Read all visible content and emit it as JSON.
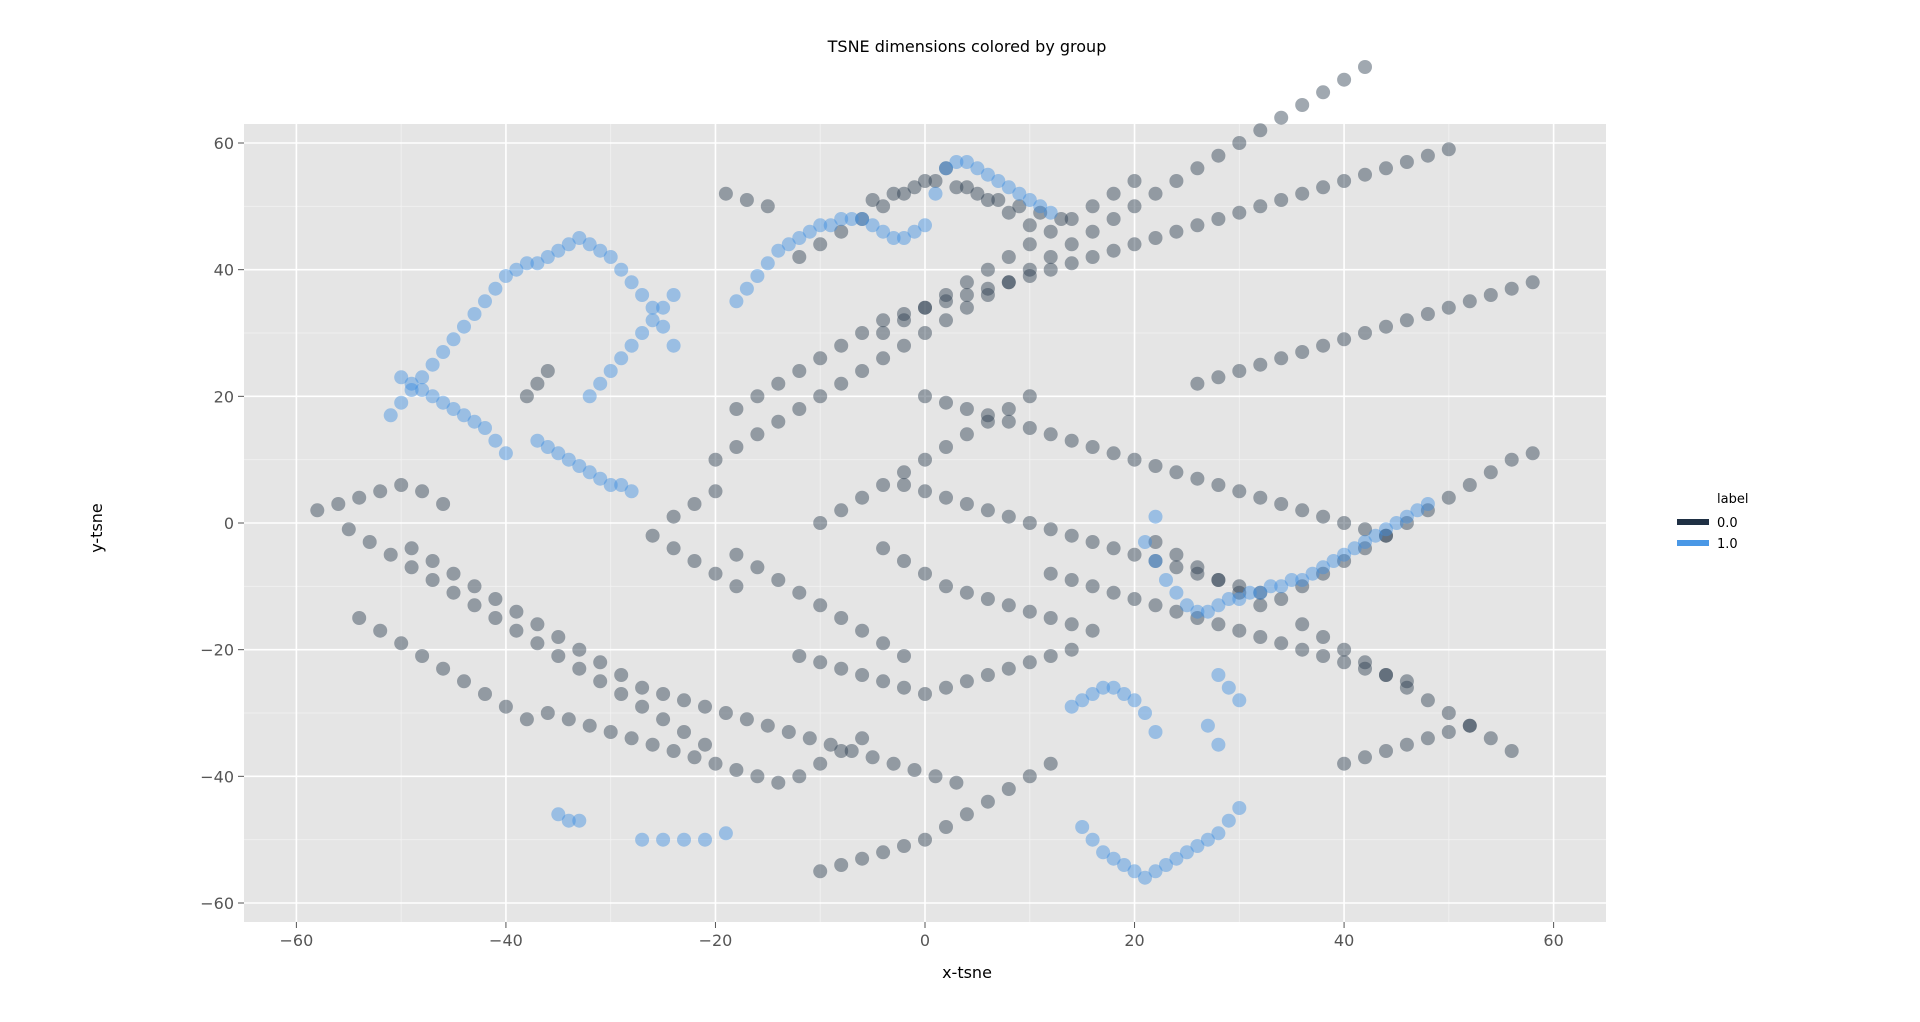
{
  "chart_data": {
    "type": "scatter",
    "title": "TSNE dimensions colored by group",
    "xlabel": "x-tsne",
    "ylabel": "y-tsne",
    "xlim": [
      -65,
      65
    ],
    "ylim": [
      -63,
      63
    ],
    "xticks": [
      -60,
      -40,
      -20,
      0,
      20,
      40,
      60
    ],
    "yticks": [
      -60,
      -40,
      -20,
      0,
      20,
      40,
      60
    ],
    "xtick_labels": [
      "−60",
      "−40",
      "−20",
      "0",
      "20",
      "40",
      "60"
    ],
    "ytick_labels": [
      "−60",
      "−40",
      "−20",
      "0",
      "20",
      "40",
      "60"
    ],
    "grid": true,
    "legend": {
      "title": "label",
      "placement": "right",
      "entries": [
        {
          "label": "0.0",
          "color": "#1f3044"
        },
        {
          "label": "1.0",
          "color": "#4a98e6"
        }
      ]
    },
    "colors": {
      "panel": "#e5e5e5",
      "grid": "#ffffff",
      "series0": "#2c3e50",
      "series1": "#3d8fe0"
    },
    "series": [
      {
        "name": "0.0",
        "x": [
          -58,
          -56,
          -54,
          -52,
          -50,
          -48,
          -46,
          -55,
          -53,
          -51,
          -49,
          -47,
          -45,
          -43,
          -41,
          -39,
          -37,
          -35,
          -33,
          -31,
          -29,
          -27,
          -25,
          -23,
          -21,
          -36,
          -34,
          -32,
          -30,
          -28,
          -26,
          -24,
          -22,
          -20,
          -18,
          -16,
          -14,
          -12,
          -10,
          -8,
          -6,
          -54,
          -52,
          -50,
          -48,
          -46,
          -44,
          -42,
          -40,
          -38,
          -49,
          -47,
          -45,
          -43,
          -41,
          -39,
          -37,
          -35,
          -33,
          -31,
          -29,
          -27,
          -25,
          -23,
          -21,
          -19,
          -17,
          -15,
          -13,
          -11,
          -9,
          -7,
          -5,
          -3,
          -1,
          1,
          3,
          -10,
          -8,
          -6,
          -4,
          -2,
          0,
          2,
          4,
          6,
          8,
          10,
          12,
          -18,
          -16,
          -14,
          -12,
          -10,
          -8,
          -6,
          -4,
          -2,
          -12,
          -10,
          -8,
          -6,
          -4,
          -2,
          0,
          2,
          4,
          6,
          8,
          10,
          12,
          14,
          -4,
          -2,
          0,
          2,
          4,
          6,
          8,
          10,
          12,
          14,
          16,
          -2,
          0,
          2,
          4,
          6,
          8,
          10,
          12,
          14,
          16,
          18,
          20,
          22,
          24,
          26,
          28,
          30,
          32,
          0,
          2,
          4,
          6,
          8,
          10,
          12,
          14,
          16,
          18,
          20,
          22,
          24,
          26,
          28,
          30,
          32,
          34,
          36,
          38,
          40,
          42,
          44,
          26,
          28,
          30,
          32,
          34,
          36,
          38,
          40,
          42,
          44,
          46,
          48,
          50,
          52,
          54,
          56,
          58,
          22,
          24,
          26,
          28,
          30,
          32,
          34,
          36,
          38,
          40,
          42,
          44,
          46,
          48,
          50,
          52,
          54,
          56,
          58,
          36,
          38,
          40,
          42,
          44,
          46,
          48,
          50,
          52,
          54,
          56,
          40,
          42,
          44,
          46,
          48,
          50,
          52,
          -10,
          -8,
          -6,
          -4,
          -2,
          0,
          2,
          4,
          6,
          8,
          10,
          -4,
          -2,
          0,
          2,
          4,
          6,
          8,
          10,
          12,
          14,
          16,
          18,
          20,
          -12,
          -10,
          -8,
          -6,
          -4,
          -2,
          0,
          2,
          4,
          6,
          8,
          10,
          -5,
          -3,
          -1,
          1,
          3,
          5,
          7,
          9,
          11,
          13,
          -20,
          -18,
          -16,
          -14,
          -12,
          -10,
          -8,
          -6,
          -4,
          -2,
          0,
          2,
          4,
          6,
          8,
          10,
          12,
          14,
          16,
          18,
          20,
          22,
          24,
          26,
          28,
          30,
          32,
          34,
          36,
          38,
          40,
          42,
          -19,
          -17,
          -15,
          -20,
          -22,
          -24,
          -18,
          -16,
          -14,
          -12,
          -10,
          -8,
          -6,
          -4,
          -2,
          0,
          2,
          4,
          6,
          8,
          10,
          12,
          14,
          16,
          18,
          20,
          22,
          24,
          26,
          28,
          30,
          32,
          34,
          36,
          38,
          40,
          42,
          44,
          46,
          48,
          50,
          12,
          14,
          16,
          18,
          20,
          22,
          24,
          26,
          28,
          30,
          32,
          34,
          36,
          38,
          40,
          42,
          44,
          46,
          -26,
          -24,
          -22,
          -20,
          -18,
          -38,
          -37,
          -36
        ],
        "y": [
          2,
          3,
          4,
          5,
          6,
          5,
          3,
          -1,
          -3,
          -5,
          -7,
          -9,
          -11,
          -13,
          -15,
          -17,
          -19,
          -21,
          -23,
          -25,
          -27,
          -29,
          -31,
          -33,
          -35,
          -30,
          -31,
          -32,
          -33,
          -34,
          -35,
          -36,
          -37,
          -38,
          -39,
          -40,
          -41,
          -40,
          -38,
          -36,
          -34,
          -15,
          -17,
          -19,
          -21,
          -23,
          -25,
          -27,
          -29,
          -31,
          -4,
          -6,
          -8,
          -10,
          -12,
          -14,
          -16,
          -18,
          -20,
          -22,
          -24,
          -26,
          -27,
          -28,
          -29,
          -30,
          -31,
          -32,
          -33,
          -34,
          -35,
          -36,
          -37,
          -38,
          -39,
          -40,
          -41,
          -55,
          -54,
          -53,
          -52,
          -51,
          -50,
          -48,
          -46,
          -44,
          -42,
          -40,
          -38,
          -5,
          -7,
          -9,
          -11,
          -13,
          -15,
          -17,
          -19,
          -21,
          -21,
          -22,
          -23,
          -24,
          -25,
          -26,
          -27,
          -26,
          -25,
          -24,
          -23,
          -22,
          -21,
          -20,
          -4,
          -6,
          -8,
          -10,
          -11,
          -12,
          -13,
          -14,
          -15,
          -16,
          -17,
          6,
          5,
          4,
          3,
          2,
          1,
          0,
          -1,
          -2,
          -3,
          -4,
          -5,
          -6,
          -7,
          -8,
          -9,
          -10,
          -11,
          20,
          19,
          18,
          17,
          16,
          15,
          14,
          13,
          12,
          11,
          10,
          9,
          8,
          7,
          6,
          5,
          4,
          3,
          2,
          1,
          0,
          -1,
          -2,
          22,
          23,
          24,
          25,
          26,
          27,
          28,
          29,
          30,
          31,
          32,
          33,
          34,
          35,
          36,
          37,
          38,
          -3,
          -5,
          -7,
          -9,
          -11,
          -13,
          -12,
          -10,
          -8,
          -6,
          -4,
          -2,
          0,
          2,
          4,
          6,
          8,
          10,
          11,
          -16,
          -18,
          -20,
          -22,
          -24,
          -26,
          -28,
          -30,
          -32,
          -34,
          -36,
          -38,
          -37,
          -36,
          -35,
          -34,
          -33,
          -32,
          0,
          2,
          4,
          6,
          8,
          10,
          12,
          14,
          16,
          18,
          20,
          30,
          32,
          34,
          36,
          38,
          40,
          42,
          44,
          46,
          48,
          50,
          52,
          54,
          42,
          44,
          46,
          48,
          50,
          52,
          54,
          56,
          53,
          51,
          49,
          47,
          51,
          52,
          53,
          54,
          53,
          52,
          51,
          50,
          49,
          48,
          10,
          12,
          14,
          16,
          18,
          20,
          22,
          24,
          26,
          28,
          30,
          32,
          34,
          36,
          38,
          40,
          42,
          44,
          46,
          48,
          50,
          52,
          54,
          56,
          58,
          60,
          62,
          64,
          66,
          68,
          70,
          72,
          52,
          51,
          50,
          5,
          3,
          1,
          18,
          20,
          22,
          24,
          26,
          28,
          30,
          32,
          33,
          34,
          35,
          36,
          37,
          38,
          39,
          40,
          41,
          42,
          43,
          44,
          45,
          46,
          47,
          48,
          49,
          50,
          51,
          52,
          53,
          54,
          55,
          56,
          57,
          58,
          59,
          -8,
          -9,
          -10,
          -11,
          -12,
          -13,
          -14,
          -15,
          -16,
          -17,
          -18,
          -19,
          -20,
          -21,
          -22,
          -23,
          -24,
          -25,
          -2,
          -4,
          -6,
          -8,
          -10,
          20,
          22,
          24
        ]
      },
      {
        "name": "1.0",
        "x": [
          -51,
          -50,
          -49,
          -48,
          -47,
          -46,
          -45,
          -44,
          -43,
          -42,
          -41,
          -40,
          -39,
          -38,
          -37,
          -36,
          -35,
          -34,
          -33,
          -32,
          -31,
          -30,
          -29,
          -28,
          -27,
          -26,
          -25,
          -24,
          -50,
          -49,
          -48,
          -47,
          -46,
          -45,
          -44,
          -43,
          -42,
          -41,
          -40,
          -37,
          -36,
          -35,
          -34,
          -33,
          -32,
          -31,
          -30,
          -29,
          -28,
          -32,
          -31,
          -30,
          -29,
          -28,
          -27,
          -26,
          -25,
          -24,
          -18,
          -17,
          -16,
          -15,
          -14,
          -13,
          -12,
          -11,
          -10,
          -9,
          -8,
          -7,
          -6,
          -5,
          -4,
          -3,
          -2,
          -1,
          0,
          1,
          2,
          3,
          4,
          5,
          6,
          7,
          8,
          9,
          10,
          11,
          12,
          22,
          21,
          22,
          23,
          24,
          25,
          26,
          27,
          28,
          29,
          30,
          31,
          32,
          33,
          34,
          35,
          36,
          37,
          38,
          39,
          40,
          41,
          42,
          43,
          44,
          45,
          46,
          47,
          48,
          14,
          15,
          16,
          17,
          18,
          19,
          20,
          21,
          22,
          15,
          16,
          17,
          18,
          19,
          20,
          21,
          22,
          23,
          24,
          25,
          26,
          27,
          28,
          29,
          30,
          28,
          29,
          30,
          27,
          28,
          -27,
          -25,
          -23,
          -21,
          -19,
          -35,
          -34,
          -33
        ],
        "y": [
          17,
          19,
          21,
          23,
          25,
          27,
          29,
          31,
          33,
          35,
          37,
          39,
          40,
          41,
          41,
          42,
          43,
          44,
          45,
          44,
          43,
          42,
          40,
          38,
          36,
          34,
          31,
          28,
          23,
          22,
          21,
          20,
          19,
          18,
          17,
          16,
          15,
          13,
          11,
          13,
          12,
          11,
          10,
          9,
          8,
          7,
          6,
          6,
          5,
          20,
          22,
          24,
          26,
          28,
          30,
          32,
          34,
          36,
          35,
          37,
          39,
          41,
          43,
          44,
          45,
          46,
          47,
          47,
          48,
          48,
          48,
          47,
          46,
          45,
          45,
          46,
          47,
          52,
          56,
          57,
          57,
          56,
          55,
          54,
          53,
          52,
          51,
          50,
          49,
          1,
          -3,
          -6,
          -9,
          -11,
          -13,
          -14,
          -14,
          -13,
          -12,
          -12,
          -11,
          -11,
          -10,
          -10,
          -9,
          -9,
          -8,
          -7,
          -6,
          -5,
          -4,
          -3,
          -2,
          -1,
          0,
          1,
          2,
          3,
          -29,
          -28,
          -27,
          -26,
          -26,
          -27,
          -28,
          -30,
          -33,
          -48,
          -50,
          -52,
          -53,
          -54,
          -55,
          -56,
          -55,
          -54,
          -53,
          -52,
          -51,
          -50,
          -49,
          -47,
          -45,
          -24,
          -26,
          -28,
          -32,
          -35,
          -50,
          -50,
          -50,
          -50,
          -49,
          -46,
          -47,
          -47
        ]
      }
    ]
  }
}
